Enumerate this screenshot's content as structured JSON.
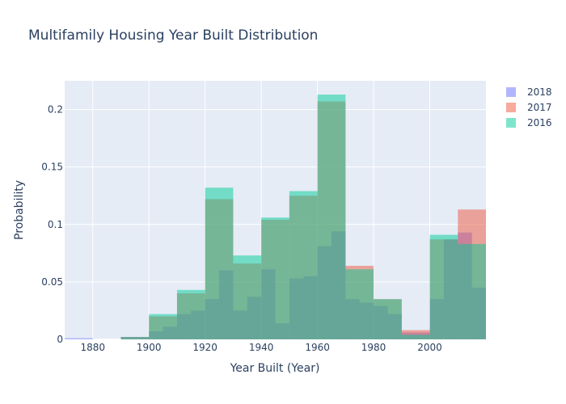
{
  "chart_data": {
    "type": "bar",
    "title": "Multifamily Housing Year Built Distribution",
    "xlabel": "Year Built (Year)",
    "ylabel": "Probability",
    "xlim": [
      1870,
      2020
    ],
    "ylim": [
      0,
      0.225
    ],
    "x_ticks": [
      1880,
      1900,
      1920,
      1940,
      1960,
      1980,
      2000
    ],
    "y_ticks": [
      0,
      0.05,
      0.1,
      0.15,
      0.2
    ],
    "y_tick_labels": [
      "0",
      "0.05",
      "0.1",
      "0.15",
      "0.2"
    ],
    "barmode": "overlay",
    "legend_position": "top-right",
    "grid": true,
    "series": [
      {
        "name": "2018",
        "color": "#636efa",
        "bins": [
          {
            "x0": 1870,
            "x1": 1880,
            "y": 0.001
          },
          {
            "x0": 1880,
            "x1": 1890,
            "y": 0.0
          },
          {
            "x0": 1890,
            "x1": 1895,
            "y": 0.002
          },
          {
            "x0": 1895,
            "x1": 1900,
            "y": 0.002
          },
          {
            "x0": 1900,
            "x1": 1905,
            "y": 0.007
          },
          {
            "x0": 1905,
            "x1": 1910,
            "y": 0.011
          },
          {
            "x0": 1910,
            "x1": 1915,
            "y": 0.022
          },
          {
            "x0": 1915,
            "x1": 1920,
            "y": 0.025
          },
          {
            "x0": 1920,
            "x1": 1925,
            "y": 0.035
          },
          {
            "x0": 1925,
            "x1": 1930,
            "y": 0.06
          },
          {
            "x0": 1930,
            "x1": 1935,
            "y": 0.025
          },
          {
            "x0": 1935,
            "x1": 1940,
            "y": 0.037
          },
          {
            "x0": 1940,
            "x1": 1945,
            "y": 0.061
          },
          {
            "x0": 1945,
            "x1": 1950,
            "y": 0.014
          },
          {
            "x0": 1950,
            "x1": 1955,
            "y": 0.053
          },
          {
            "x0": 1955,
            "x1": 1960,
            "y": 0.055
          },
          {
            "x0": 1960,
            "x1": 1965,
            "y": 0.081
          },
          {
            "x0": 1965,
            "x1": 1970,
            "y": 0.094
          },
          {
            "x0": 1970,
            "x1": 1975,
            "y": 0.035
          },
          {
            "x0": 1975,
            "x1": 1980,
            "y": 0.032
          },
          {
            "x0": 1980,
            "x1": 1985,
            "y": 0.029
          },
          {
            "x0": 1985,
            "x1": 1990,
            "y": 0.022
          },
          {
            "x0": 1990,
            "x1": 1995,
            "y": 0.006
          },
          {
            "x0": 1995,
            "x1": 2000,
            "y": 0.006
          },
          {
            "x0": 2000,
            "x1": 2005,
            "y": 0.035
          },
          {
            "x0": 2005,
            "x1": 2010,
            "y": 0.087
          },
          {
            "x0": 2010,
            "x1": 2015,
            "y": 0.093
          },
          {
            "x0": 2015,
            "x1": 2020,
            "y": 0.045
          }
        ]
      },
      {
        "name": "2017",
        "color": "#ef553b",
        "bins": [
          {
            "x0": 1890,
            "x1": 1900,
            "y": 0.002
          },
          {
            "x0": 1900,
            "x1": 1910,
            "y": 0.02
          },
          {
            "x0": 1910,
            "x1": 1920,
            "y": 0.04
          },
          {
            "x0": 1920,
            "x1": 1930,
            "y": 0.122
          },
          {
            "x0": 1930,
            "x1": 1940,
            "y": 0.066
          },
          {
            "x0": 1940,
            "x1": 1950,
            "y": 0.104
          },
          {
            "x0": 1950,
            "x1": 1960,
            "y": 0.125
          },
          {
            "x0": 1960,
            "x1": 1970,
            "y": 0.207
          },
          {
            "x0": 1970,
            "x1": 1980,
            "y": 0.064
          },
          {
            "x0": 1980,
            "x1": 1990,
            "y": 0.035
          },
          {
            "x0": 1990,
            "x1": 2000,
            "y": 0.008
          },
          {
            "x0": 2000,
            "x1": 2010,
            "y": 0.087
          },
          {
            "x0": 2010,
            "x1": 2020,
            "y": 0.113
          }
        ]
      },
      {
        "name": "2016",
        "color": "#00cc96",
        "bins": [
          {
            "x0": 1890,
            "x1": 1900,
            "y": 0.002
          },
          {
            "x0": 1900,
            "x1": 1910,
            "y": 0.022
          },
          {
            "x0": 1910,
            "x1": 1920,
            "y": 0.043
          },
          {
            "x0": 1920,
            "x1": 1930,
            "y": 0.132
          },
          {
            "x0": 1930,
            "x1": 1940,
            "y": 0.073
          },
          {
            "x0": 1940,
            "x1": 1950,
            "y": 0.106
          },
          {
            "x0": 1950,
            "x1": 1960,
            "y": 0.129
          },
          {
            "x0": 1960,
            "x1": 1970,
            "y": 0.213
          },
          {
            "x0": 1970,
            "x1": 1980,
            "y": 0.061
          },
          {
            "x0": 1980,
            "x1": 1990,
            "y": 0.035
          },
          {
            "x0": 1990,
            "x1": 2000,
            "y": 0.004
          },
          {
            "x0": 2000,
            "x1": 2010,
            "y": 0.091
          },
          {
            "x0": 2010,
            "x1": 2020,
            "y": 0.083
          }
        ]
      }
    ]
  }
}
